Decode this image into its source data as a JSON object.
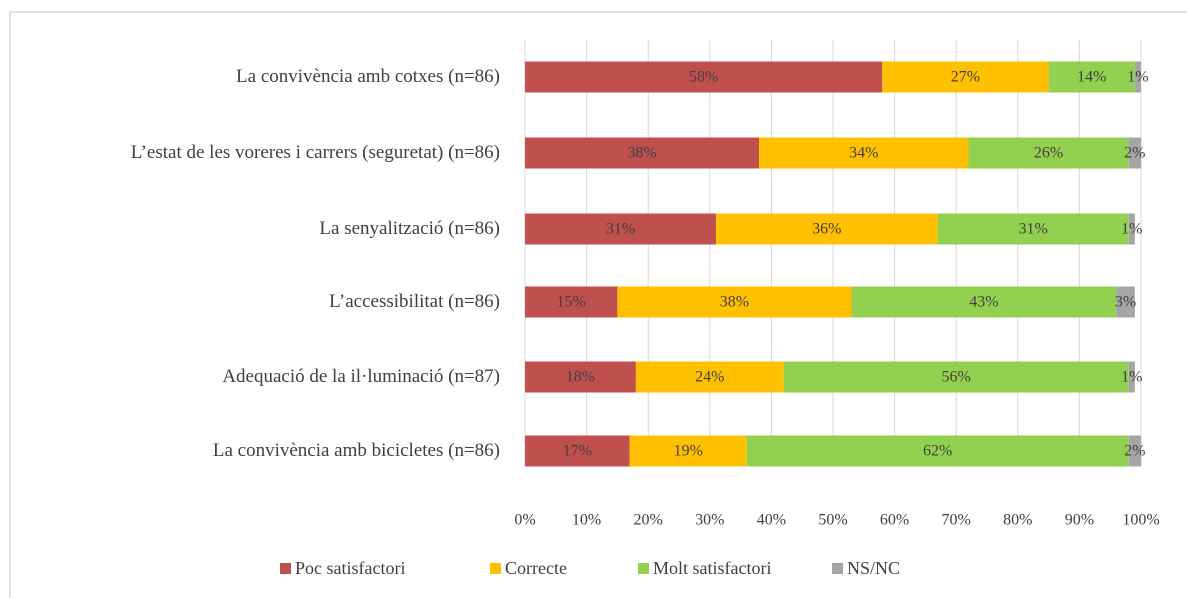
{
  "chart_data": {
    "type": "stacked-bar-horizontal",
    "categories": [
      "La convivència amb cotxes (n=86)",
      "L’estat de les voreres i carrers (seguretat) (n=86)",
      "La senyalització (n=86)",
      "L’accessibilitat (n=86)",
      "Adequació de la il·luminació (n=87)",
      "La convivència amb bicicletes (n=86)"
    ],
    "series": [
      {
        "name": "Poc satisfactori",
        "color": "#c0504d",
        "values": [
          58,
          38,
          31,
          15,
          18,
          17
        ],
        "value_labels": [
          "58%",
          "38%",
          "31%",
          "15%",
          "18%",
          "17%"
        ]
      },
      {
        "name": "Correcte",
        "color": "#ffc000",
        "values": [
          27,
          34,
          36,
          38,
          24,
          19
        ],
        "value_labels": [
          "27%",
          "34%",
          "36%",
          "38%",
          "24%",
          "19%"
        ]
      },
      {
        "name": "Molt satisfactori",
        "color": "#92d050",
        "values": [
          14,
          26,
          31,
          43,
          56,
          62
        ],
        "value_labels": [
          "14%",
          "26%",
          "31%",
          "43%",
          "56%",
          "62%"
        ]
      },
      {
        "name": "NS/NC",
        "color": "#a5a5a5",
        "values": [
          1,
          2,
          1,
          3,
          1,
          2
        ],
        "value_labels": [
          "1%",
          "2%",
          "1%",
          "3%",
          "1%",
          "2%"
        ]
      }
    ],
    "xlim": [
      0,
      100
    ],
    "xticks": [
      {
        "value": 0,
        "label": "0%"
      },
      {
        "value": 10,
        "label": "10%"
      },
      {
        "value": 20,
        "label": "20%"
      },
      {
        "value": 30,
        "label": "30%"
      },
      {
        "value": 40,
        "label": "40%"
      },
      {
        "value": 50,
        "label": "50%"
      },
      {
        "value": 60,
        "label": "60%"
      },
      {
        "value": 70,
        "label": "70%"
      },
      {
        "value": 80,
        "label": "80%"
      },
      {
        "value": 90,
        "label": "90%"
      },
      {
        "value": 100,
        "label": "100%"
      }
    ],
    "grid": true,
    "legend": "bottom"
  }
}
